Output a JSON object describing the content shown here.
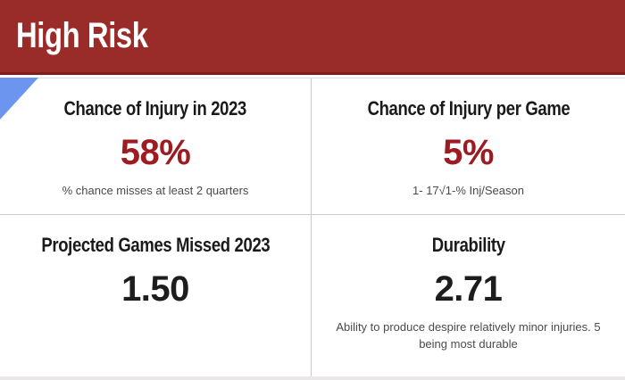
{
  "theme": {
    "header_bg": "#992B28",
    "header_border": "#7C201E",
    "accent_red": "#9C1C22",
    "triangle_blue": "#6C95F0",
    "heading_color": "#1A1A1A",
    "caption_color": "#4A4A4A",
    "divider_color": "#CBCBCB",
    "footer_strip": "#E9E7E7"
  },
  "header": {
    "title": "High Risk"
  },
  "cards": [
    {
      "title": "Chance of Injury in 2023",
      "value": "58%",
      "value_color": "red",
      "caption": "% chance misses at least 2 quarters"
    },
    {
      "title": "Chance of Injury per Game",
      "value": "5%",
      "value_color": "red",
      "caption": "1- 17√1-% Inj/Season"
    },
    {
      "title": "Projected Games Missed 2023",
      "value": "1.50",
      "value_color": "dark",
      "caption": ""
    },
    {
      "title": "Durability",
      "value": "2.71",
      "value_color": "dark",
      "caption": "Ability to produce despire relatively minor injuries. 5 being most durable"
    }
  ]
}
